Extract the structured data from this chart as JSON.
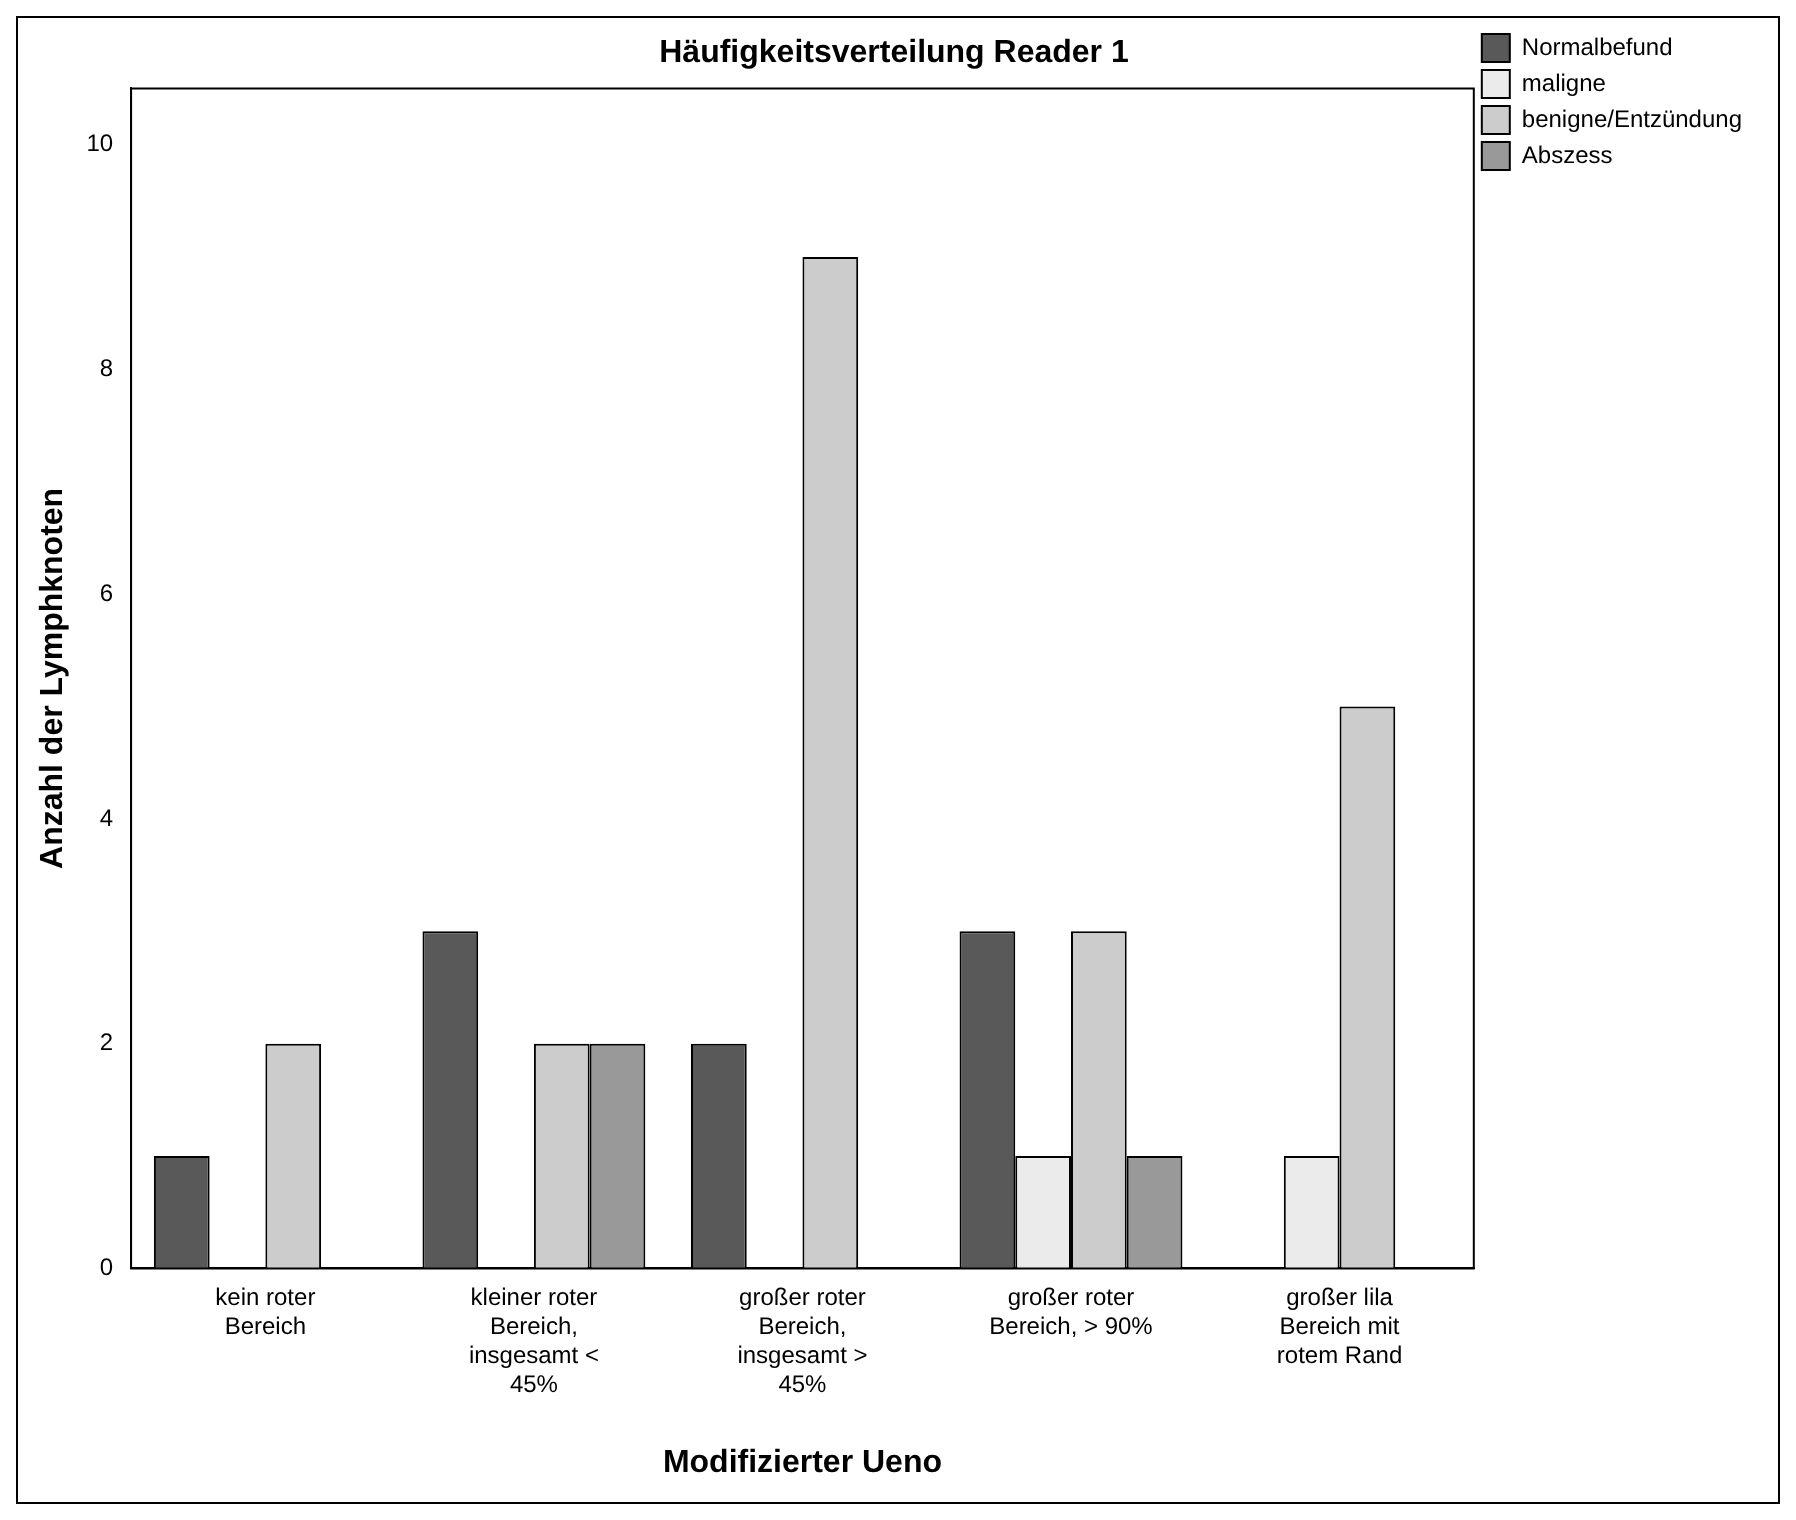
{
  "chart_data": {
    "type": "bar",
    "title": "Häufigkeitsverteilung Reader 1",
    "xlabel": "Modifizierter Ueno",
    "ylabel": "Anzahl der Lymphknoten",
    "categories": [
      "kein roter Bereich",
      "kleiner roter Bereich, insgesamt < 45%",
      "großer roter Bereich, insgesamt > 45%",
      "großer roter Bereich, > 90%",
      "großer lila Bereich mit rotem Rand"
    ],
    "series": [
      {
        "name": "Normalbefund",
        "color": "#595959",
        "values": [
          1,
          3,
          2,
          3,
          0
        ]
      },
      {
        "name": "maligne",
        "color": "#ebebeb",
        "values": [
          0,
          0,
          0,
          1,
          1
        ]
      },
      {
        "name": "benigne/Entzündung",
        "color": "#cccccc",
        "values": [
          2,
          2,
          9,
          3,
          5
        ]
      },
      {
        "name": "Abszess",
        "color": "#999999",
        "values": [
          0,
          2,
          0,
          1,
          0
        ]
      }
    ],
    "ylim": [
      0,
      10.5
    ],
    "yticks": [
      0,
      2,
      4,
      6,
      8,
      10
    ],
    "grid": false,
    "legend": "top right"
  }
}
